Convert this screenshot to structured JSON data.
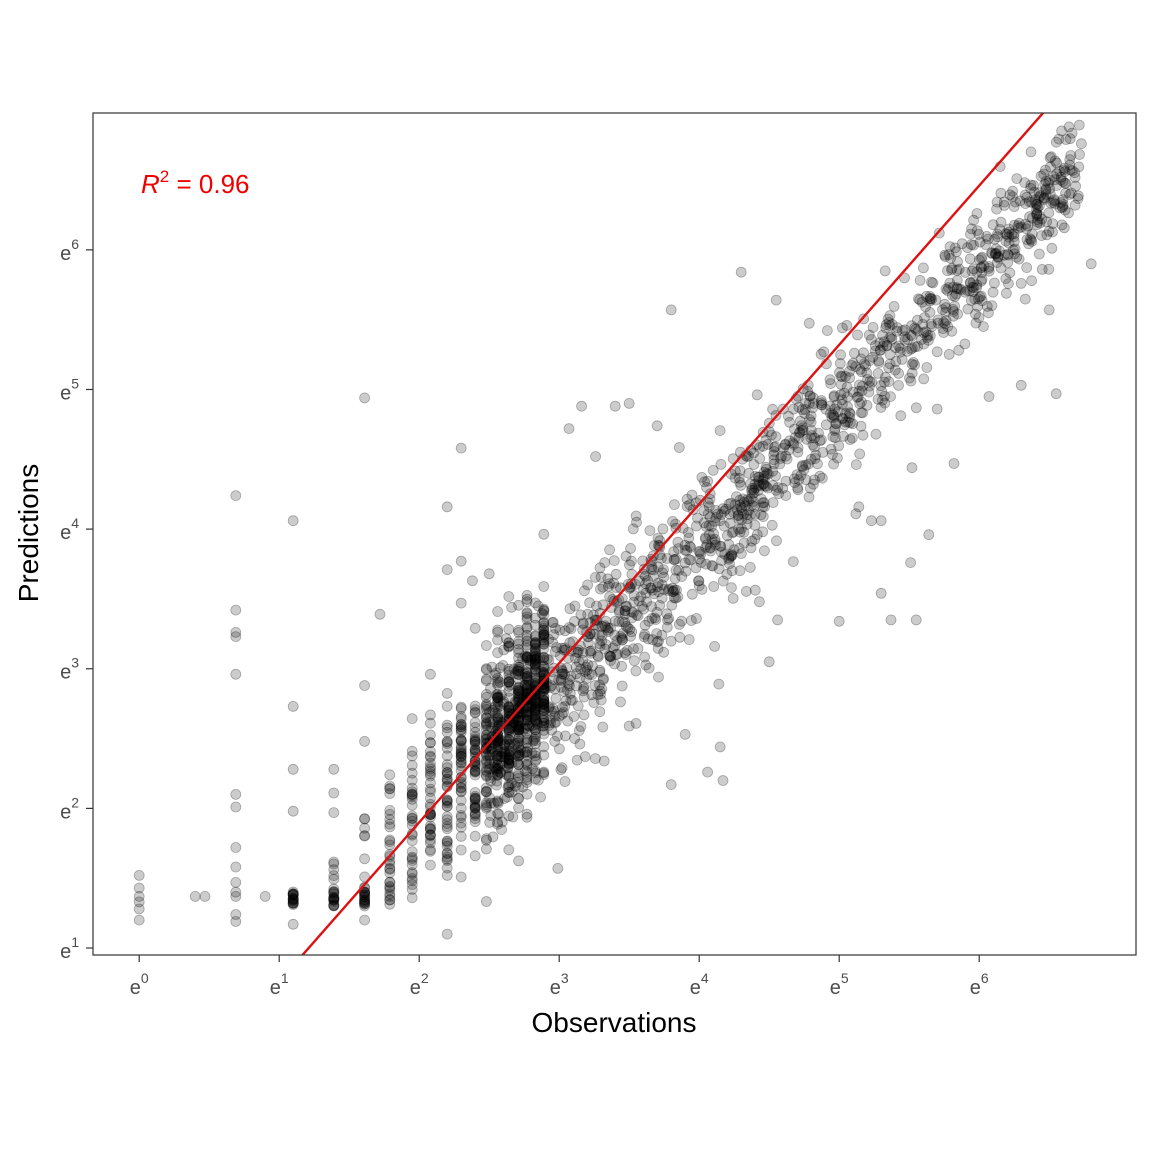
{
  "chart_data": {
    "type": "scatter",
    "xlabel": "Observations",
    "ylabel": "Predictions",
    "x_scale": "log",
    "y_scale": "log",
    "x_tick_base": "e",
    "y_tick_base": "e",
    "xlim_ln": [
      -0.33,
      7.12
    ],
    "ylim_ln": [
      0.95,
      6.98
    ],
    "x_ticks_ln": [
      0,
      1,
      2,
      3,
      4,
      5,
      6
    ],
    "y_ticks_ln": [
      1,
      2,
      3,
      4,
      5,
      6
    ],
    "grid": false,
    "annotation": {
      "prefix": "R",
      "superscript": "2",
      "suffix": " = 0.96",
      "color": "#ee0000",
      "position": "top-left"
    },
    "reference_line": {
      "slope": 1.14,
      "intercept_ln": -0.38,
      "color": "#dd1111"
    },
    "point_color": "#000000",
    "point_opacity": 0.2,
    "outliers_ln": [
      [
        0,
        1.52
      ],
      [
        0,
        1.43
      ],
      [
        0,
        1.37
      ],
      [
        0,
        1.33
      ],
      [
        0,
        1.28
      ],
      [
        0,
        1.2
      ],
      [
        0.4,
        1.37
      ],
      [
        0.47,
        1.37
      ],
      [
        0.69,
        4.24
      ],
      [
        0.69,
        3.42
      ],
      [
        0.69,
        3.26
      ],
      [
        0.69,
        3.23
      ],
      [
        0.69,
        2.96
      ],
      [
        0.69,
        2.1
      ],
      [
        0.69,
        2.01
      ],
      [
        0.69,
        1.72
      ],
      [
        0.69,
        1.58
      ],
      [
        0.69,
        1.47
      ],
      [
        0.69,
        1.4
      ],
      [
        0.69,
        1.37
      ],
      [
        0.69,
        1.24
      ],
      [
        0.69,
        1.19
      ],
      [
        0.9,
        1.37
      ],
      [
        1.1,
        4.06
      ],
      [
        1.1,
        2.73
      ],
      [
        1.1,
        2.28
      ],
      [
        1.1,
        1.98
      ],
      [
        1.1,
        1.17
      ],
      [
        1.39,
        2.28
      ],
      [
        1.39,
        2.11
      ],
      [
        1.39,
        1.97
      ],
      [
        1.61,
        4.94
      ],
      [
        1.61,
        2.88
      ],
      [
        1.61,
        2.48
      ],
      [
        1.61,
        1.2
      ],
      [
        1.72,
        3.39
      ],
      [
        2.08,
        2.96
      ],
      [
        2.2,
        4.16
      ],
      [
        2.2,
        3.71
      ],
      [
        2.2,
        1.1
      ],
      [
        2.3,
        4.58
      ],
      [
        2.3,
        3.77
      ],
      [
        2.3,
        3.47
      ],
      [
        2.38,
        3.63
      ],
      [
        2.4,
        3.29
      ],
      [
        2.5,
        3.68
      ],
      [
        2.66,
        3.44
      ],
      [
        2.85,
        3.45
      ],
      [
        2.99,
        1.57
      ],
      [
        3.4,
        4.88
      ],
      [
        3.5,
        4.9
      ],
      [
        3.5,
        2.59
      ],
      [
        3.8,
        5.57
      ],
      [
        3.9,
        2.53
      ],
      [
        3.7,
        4.74
      ],
      [
        3.8,
        2.17
      ],
      [
        4.06,
        2.26
      ],
      [
        4.15,
        2.44
      ],
      [
        4.17,
        2.2
      ],
      [
        4.3,
        5.84
      ],
      [
        4.55,
        5.64
      ],
      [
        3.16,
        4.88
      ],
      [
        3.26,
        4.52
      ],
      [
        3.07,
        4.72
      ],
      [
        3.64,
        3.34
      ],
      [
        3.98,
        3.36
      ],
      [
        4.11,
        3.16
      ],
      [
        4.43,
        3.48
      ],
      [
        4.5,
        3.05
      ],
      [
        4.14,
        2.89
      ],
      [
        4.56,
        3.35
      ],
      [
        5.0,
        3.34
      ],
      [
        5.3,
        3.54
      ],
      [
        5.37,
        3.35
      ],
      [
        5.55,
        3.35
      ],
      [
        5.14,
        4.16
      ],
      [
        5.23,
        4.06
      ],
      [
        5.3,
        4.06
      ],
      [
        5.51,
        3.76
      ],
      [
        5.64,
        3.96
      ],
      [
        5.52,
        4.44
      ],
      [
        5.82,
        4.47
      ],
      [
        5.7,
        4.86
      ],
      [
        6.07,
        4.95
      ],
      [
        6.3,
        5.03
      ],
      [
        6.55,
        4.97
      ],
      [
        6.8,
        5.9
      ],
      [
        6.45,
        5.86
      ],
      [
        6.5,
        5.57
      ],
      [
        6.3,
        5.76
      ],
      [
        6.03,
        5.45
      ],
      [
        6.1,
        6.18
      ],
      [
        6.73,
        6.76
      ],
      [
        6.62,
        6.79
      ],
      [
        4.6,
        4.86
      ],
      [
        4.8,
        4.5
      ],
      [
        5.7,
        5.27
      ]
    ],
    "column_x_ln": [
      1.1,
      1.39,
      1.61,
      1.79,
      1.95,
      2.08,
      2.2,
      2.3,
      2.4,
      2.48,
      2.56,
      2.64,
      2.71,
      2.77,
      2.83,
      2.89
    ],
    "bulk_x_range_ln": [
      2.5,
      6.73
    ],
    "bulk_spread_ln": 0.18
  }
}
